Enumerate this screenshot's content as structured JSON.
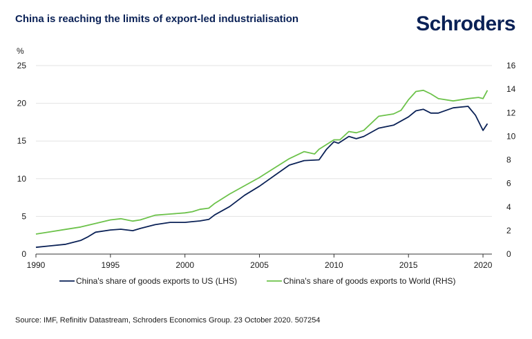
{
  "title": "China is reaching the limits of export-led industrialisation",
  "logo_text": "Schroders",
  "source": "Source: IMF, Refinitiv Datastream, Schroders Economics Group. 23 October 2020. 507254",
  "chart_data": {
    "type": "line",
    "title": "China is reaching the limits of export-led industrialisation",
    "left_axis_unit": "%",
    "ylim_left": [
      0,
      25
    ],
    "ylim_right": [
      0,
      16
    ],
    "xlim": [
      1990,
      2020.6
    ],
    "y_ticks_left": [
      "0",
      "5",
      "10",
      "15",
      "20",
      "25"
    ],
    "y_ticks_right": [
      "0",
      "2",
      "4",
      "6",
      "8",
      "10",
      "12",
      "14",
      "16"
    ],
    "x_ticks": [
      "1990",
      "1995",
      "2000",
      "2005",
      "2010",
      "2015",
      "2020"
    ],
    "grid": true,
    "legend_position": "bottom",
    "series": [
      {
        "name": "China's share of goods exports to US (LHS)",
        "axis": "left",
        "color": "#0a2156",
        "x": [
          1990,
          1991,
          1992,
          1993,
          1993.5,
          1994,
          1995,
          1995.7,
          1996.5,
          1997,
          1998,
          1999,
          2000,
          2000.5,
          2001,
          2001.6,
          2002,
          2003,
          2004,
          2005,
          2006,
          2007,
          2008,
          2009,
          2009.5,
          2010,
          2010.3,
          2011,
          2011.5,
          2012,
          2013,
          2014,
          2015,
          2015.5,
          2016,
          2016.5,
          2017,
          2018,
          2019,
          2019.5,
          2020,
          2020.3
        ],
        "y": [
          0.9,
          1.1,
          1.3,
          1.8,
          2.3,
          2.9,
          3.2,
          3.3,
          3.1,
          3.4,
          3.9,
          4.2,
          4.2,
          4.3,
          4.4,
          4.6,
          5.2,
          6.3,
          7.8,
          9.0,
          10.4,
          11.8,
          12.4,
          12.5,
          13.9,
          14.9,
          14.7,
          15.6,
          15.3,
          15.6,
          16.7,
          17.1,
          18.2,
          19.0,
          19.2,
          18.7,
          18.7,
          19.4,
          19.6,
          18.4,
          16.4,
          17.3
        ]
      },
      {
        "name": "China's share of goods exports to World (RHS)",
        "axis": "right",
        "color": "#6cc24a",
        "x": [
          1990,
          1991,
          1992,
          1993,
          1994,
          1995,
          1995.7,
          1996.5,
          1997,
          1998,
          1999,
          2000,
          2000.5,
          2001,
          2001.6,
          2002,
          2003,
          2004,
          2005,
          2006,
          2007,
          2008,
          2008.7,
          2009,
          2010,
          2010.4,
          2011,
          2011.5,
          2012,
          2013,
          2014,
          2014.5,
          2015,
          2015.5,
          2016,
          2016.5,
          2017,
          2018,
          2019,
          2019.7,
          2020,
          2020.3
        ],
        "y": [
          1.7,
          1.9,
          2.1,
          2.3,
          2.6,
          2.9,
          3.0,
          2.8,
          2.9,
          3.3,
          3.4,
          3.5,
          3.6,
          3.8,
          3.9,
          4.3,
          5.1,
          5.8,
          6.5,
          7.3,
          8.1,
          8.7,
          8.5,
          8.9,
          9.7,
          9.7,
          10.4,
          10.3,
          10.5,
          11.7,
          11.9,
          12.2,
          13.1,
          13.8,
          13.9,
          13.6,
          13.2,
          13.0,
          13.2,
          13.3,
          13.2,
          13.9
        ]
      }
    ]
  }
}
